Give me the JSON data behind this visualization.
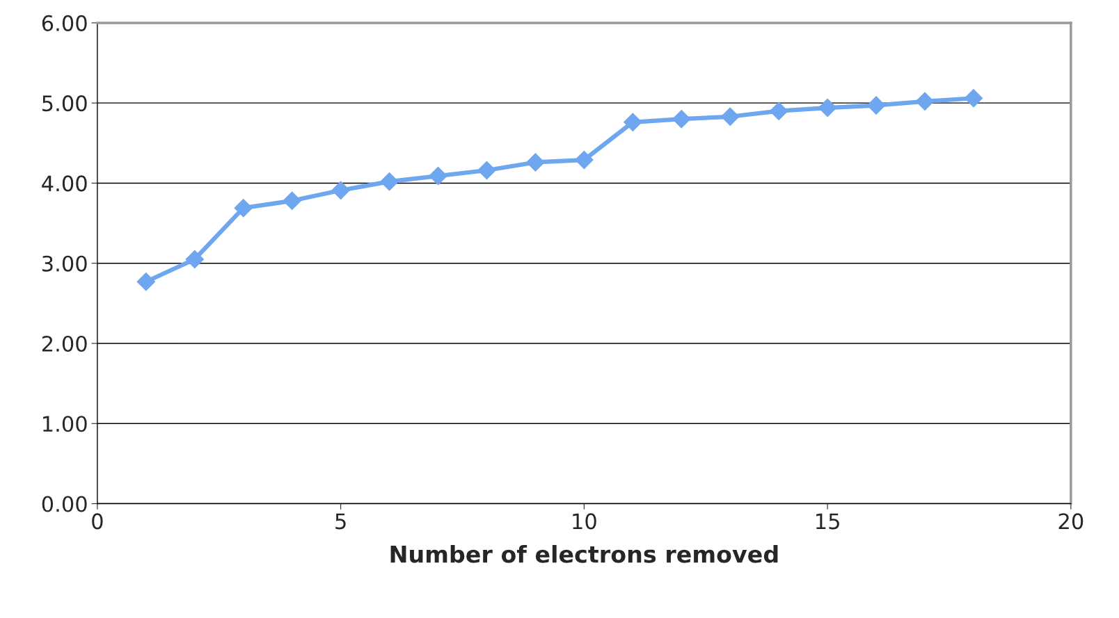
{
  "chart_data": {
    "type": "line",
    "xlabel": "Number of electrons removed",
    "x": [
      1,
      2,
      3,
      4,
      5,
      6,
      7,
      8,
      9,
      10,
      11,
      12,
      13,
      14,
      15,
      16,
      17,
      18
    ],
    "series": [
      {
        "color": "#6ea6ef",
        "values": [
          2.77,
          3.05,
          3.69,
          3.78,
          3.91,
          4.02,
          4.09,
          4.16,
          4.26,
          4.29,
          4.76,
          4.8,
          4.83,
          4.9,
          4.94,
          4.97,
          5.02,
          5.06
        ]
      }
    ],
    "xlim": [
      0,
      20
    ],
    "xticks": [
      0,
      5,
      10,
      15,
      20
    ],
    "ylim": [
      0,
      6
    ],
    "yticks": [
      {
        "value": 0,
        "label": "0.00"
      },
      {
        "value": 1,
        "label": "1.00"
      },
      {
        "value": 2,
        "label": "2.00"
      },
      {
        "value": 3,
        "label": "3.00"
      },
      {
        "value": 4,
        "label": "4.00"
      },
      {
        "value": 5,
        "label": "5.00"
      },
      {
        "value": 6,
        "label": "6.00"
      }
    ],
    "grid": "y",
    "marker": "diamond",
    "line_style": "solid"
  }
}
